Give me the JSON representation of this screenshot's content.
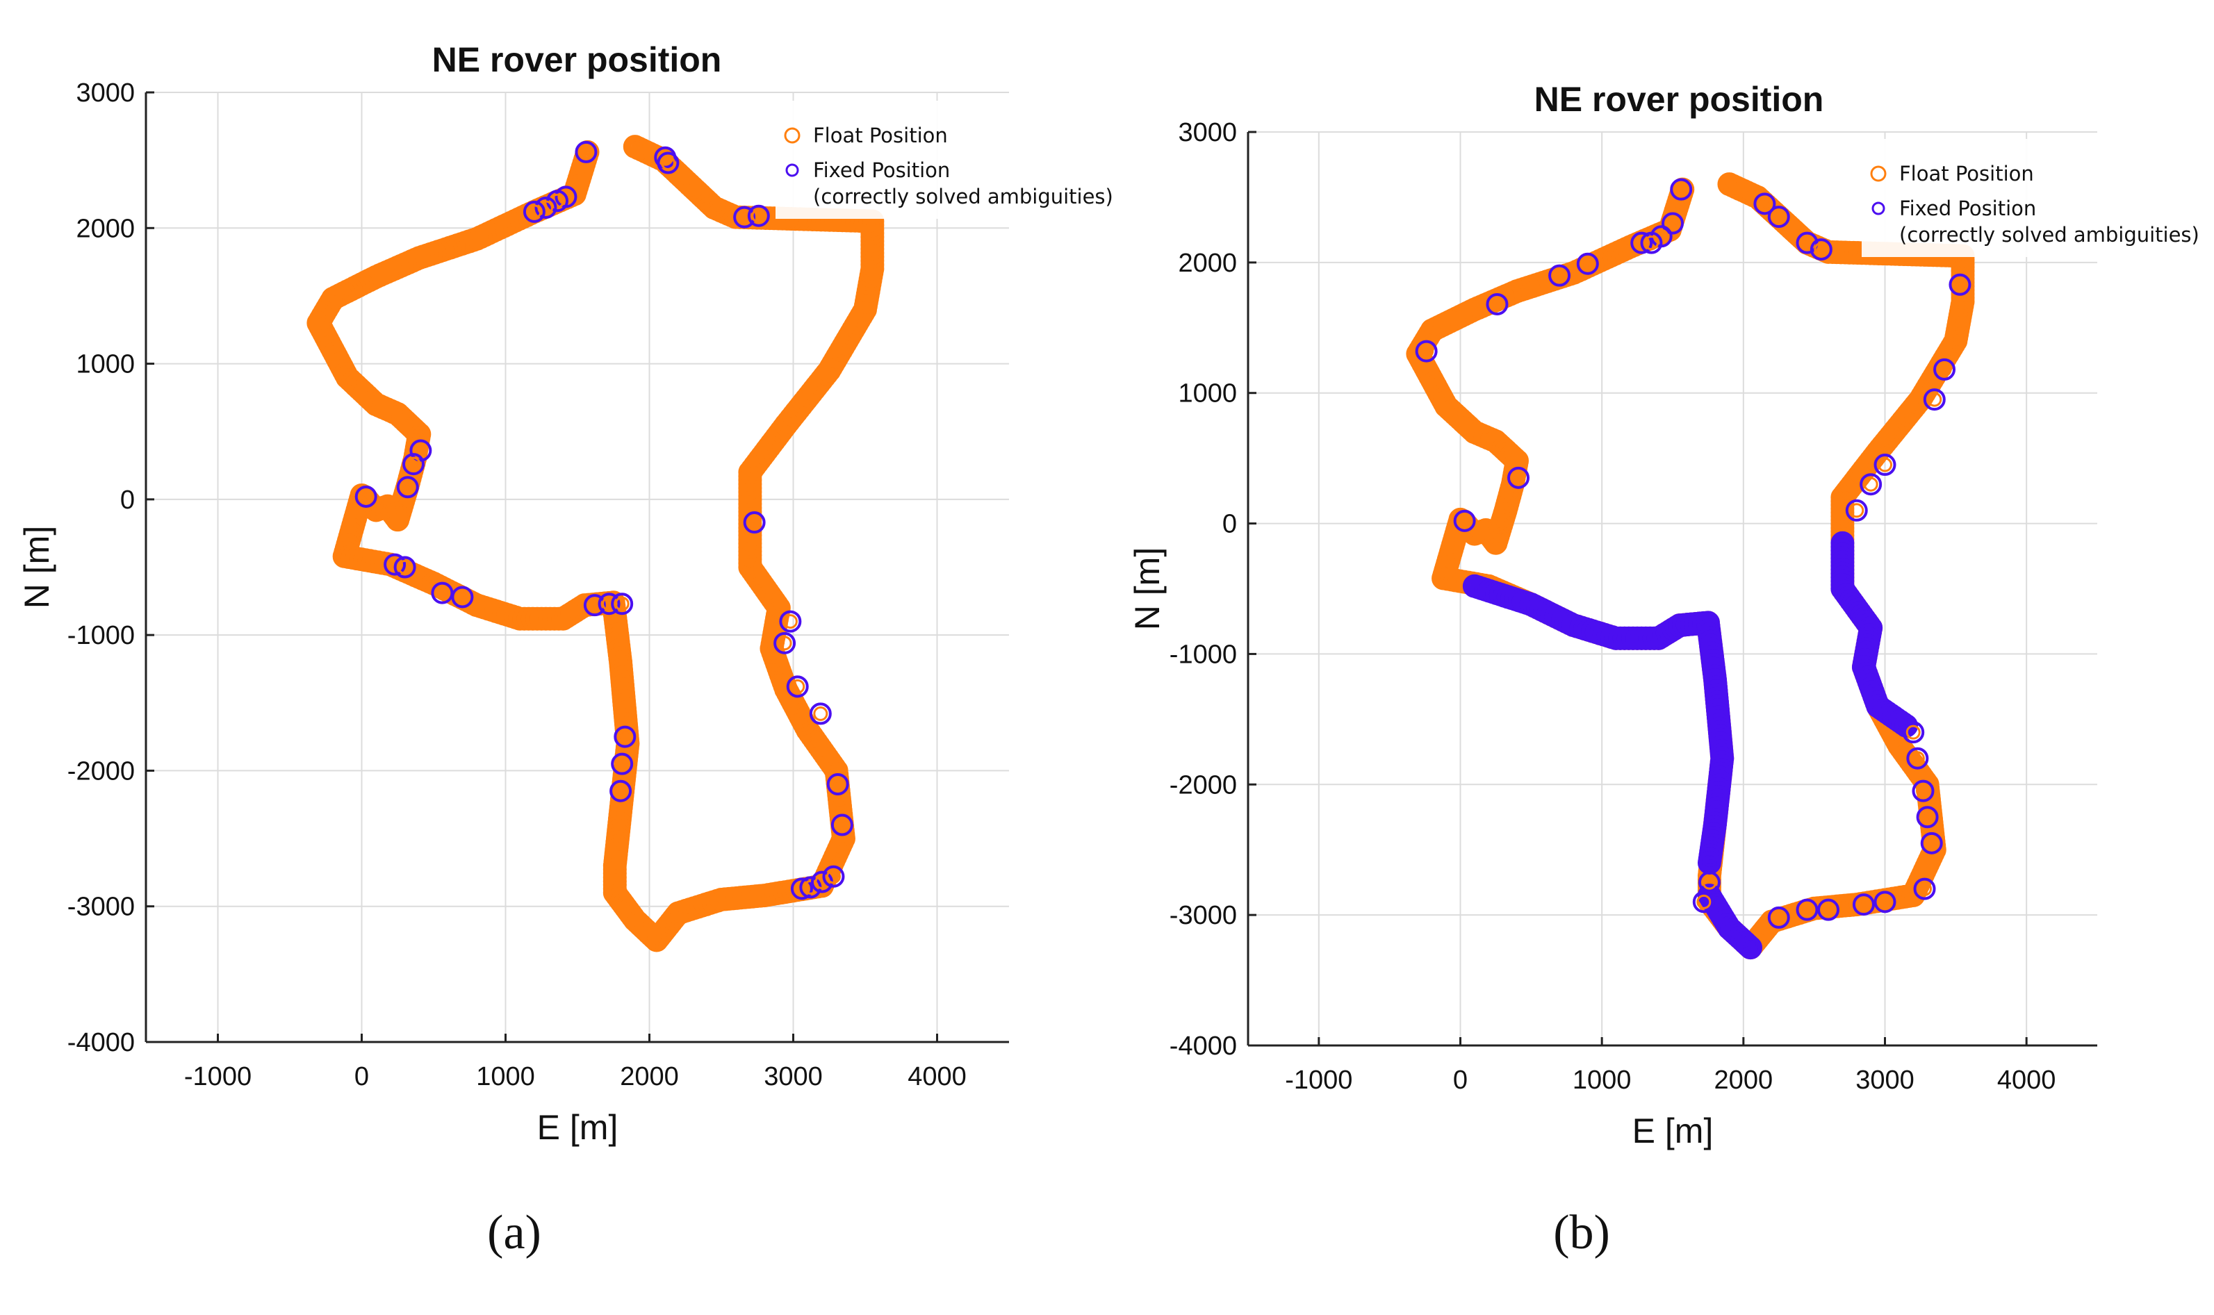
{
  "colors": {
    "float": "#ff7f0e",
    "fixed": "#4b0ff0",
    "grid": "#dcdcdc",
    "axis": "#222222",
    "text": "#111111"
  },
  "chart_data": [
    {
      "type": "scatter",
      "title": "NE rover position",
      "xlabel": "E [m]",
      "ylabel": "N [m]",
      "xlim": [
        -1500,
        4500
      ],
      "ylim": [
        -4000,
        3000
      ],
      "xticks": [
        -1000,
        0,
        1000,
        2000,
        3000,
        4000
      ],
      "yticks": [
        -4000,
        -3000,
        -2000,
        -1000,
        0,
        1000,
        2000,
        3000
      ],
      "grid": true,
      "legend_position": "top-right",
      "legend": [
        "Float Position",
        "Fixed Position",
        "(correctly solved ambiguities)"
      ],
      "caption": "(a)",
      "track": [
        [
          1570,
          2560
        ],
        [
          1480,
          2250
        ],
        [
          1200,
          2120
        ],
        [
          800,
          1920
        ],
        [
          400,
          1780
        ],
        [
          100,
          1640
        ],
        [
          -200,
          1480
        ],
        [
          -300,
          1300
        ],
        [
          -200,
          1100
        ],
        [
          -100,
          900
        ],
        [
          100,
          700
        ],
        [
          250,
          630
        ],
        [
          400,
          480
        ],
        [
          370,
          300
        ],
        [
          320,
          100
        ],
        [
          250,
          -150
        ],
        [
          180,
          -50
        ],
        [
          100,
          -80
        ],
        [
          20,
          20
        ],
        [
          0,
          30
        ],
        [
          -120,
          -420
        ],
        [
          200,
          -480
        ],
        [
          500,
          -620
        ],
        [
          800,
          -780
        ],
        [
          1100,
          -880
        ],
        [
          1400,
          -880
        ],
        [
          1550,
          -780
        ],
        [
          1750,
          -760
        ],
        [
          1800,
          -1200
        ],
        [
          1850,
          -1800
        ],
        [
          1800,
          -2300
        ],
        [
          1760,
          -2700
        ],
        [
          1760,
          -2900
        ],
        [
          1900,
          -3100
        ],
        [
          2050,
          -3250
        ],
        [
          2200,
          -3050
        ],
        [
          2500,
          -2950
        ],
        [
          2800,
          -2920
        ],
        [
          3200,
          -2850
        ],
        [
          3350,
          -2500
        ],
        [
          3300,
          -2000
        ],
        [
          3100,
          -1700
        ],
        [
          2950,
          -1400
        ],
        [
          2850,
          -1100
        ],
        [
          2900,
          -800
        ],
        [
          2700,
          -500
        ],
        [
          2700,
          -150
        ],
        [
          2700,
          200
        ],
        [
          2950,
          550
        ],
        [
          3250,
          950
        ],
        [
          3500,
          1400
        ],
        [
          3550,
          1700
        ],
        [
          3550,
          2050
        ],
        [
          2600,
          2080
        ],
        [
          2450,
          2150
        ],
        [
          2300,
          2300
        ],
        [
          2100,
          2500
        ],
        [
          1900,
          2600
        ]
      ],
      "fixed_segments": [],
      "fixed_points": [
        [
          1560,
          2560
        ],
        [
          1420,
          2230
        ],
        [
          1360,
          2200
        ],
        [
          1280,
          2150
        ],
        [
          1200,
          2120
        ],
        [
          2110,
          2520
        ],
        [
          2130,
          2480
        ],
        [
          2660,
          2080
        ],
        [
          2760,
          2090
        ],
        [
          410,
          360
        ],
        [
          360,
          260
        ],
        [
          320,
          90
        ],
        [
          30,
          20
        ],
        [
          230,
          -480
        ],
        [
          300,
          -500
        ],
        [
          560,
          -690
        ],
        [
          700,
          -720
        ],
        [
          1620,
          -780
        ],
        [
          1720,
          -770
        ],
        [
          1810,
          -770
        ],
        [
          1830,
          -1750
        ],
        [
          1810,
          -1950
        ],
        [
          1800,
          -2150
        ],
        [
          3060,
          -2870
        ],
        [
          3120,
          -2860
        ],
        [
          3200,
          -2820
        ],
        [
          3280,
          -2780
        ],
        [
          3340,
          -2400
        ],
        [
          3310,
          -2100
        ],
        [
          3190,
          -1580
        ],
        [
          3030,
          -1380
        ],
        [
          2940,
          -1060
        ],
        [
          2980,
          -900
        ],
        [
          2730,
          -170
        ]
      ]
    },
    {
      "type": "scatter",
      "title": "NE rover position",
      "xlabel": "E [m]",
      "ylabel": "N [m]",
      "xlim": [
        -1500,
        4500
      ],
      "ylim": [
        -4000,
        3000
      ],
      "xticks": [
        -1000,
        0,
        1000,
        2000,
        3000,
        4000
      ],
      "yticks": [
        -4000,
        -3000,
        -2000,
        -1000,
        0,
        1000,
        2000,
        3000
      ],
      "grid": true,
      "legend_position": "top-right",
      "legend": [
        "Float Position",
        "Fixed Position",
        "(correctly solved ambiguities)"
      ],
      "caption": "(b)",
      "track": [
        [
          1570,
          2560
        ],
        [
          1480,
          2250
        ],
        [
          1200,
          2120
        ],
        [
          800,
          1920
        ],
        [
          400,
          1780
        ],
        [
          100,
          1640
        ],
        [
          -200,
          1480
        ],
        [
          -300,
          1300
        ],
        [
          -200,
          1100
        ],
        [
          -100,
          900
        ],
        [
          100,
          700
        ],
        [
          250,
          630
        ],
        [
          400,
          480
        ],
        [
          370,
          300
        ],
        [
          320,
          100
        ],
        [
          250,
          -150
        ],
        [
          180,
          -50
        ],
        [
          100,
          -80
        ],
        [
          20,
          20
        ],
        [
          0,
          30
        ],
        [
          -120,
          -420
        ],
        [
          200,
          -480
        ],
        [
          500,
          -620
        ],
        [
          800,
          -780
        ],
        [
          1100,
          -880
        ],
        [
          1400,
          -880
        ],
        [
          1550,
          -780
        ],
        [
          1750,
          -760
        ],
        [
          1800,
          -1200
        ],
        [
          1850,
          -1800
        ],
        [
          1800,
          -2300
        ],
        [
          1760,
          -2700
        ],
        [
          1760,
          -2900
        ],
        [
          1900,
          -3100
        ],
        [
          2050,
          -3250
        ],
        [
          2200,
          -3050
        ],
        [
          2500,
          -2950
        ],
        [
          2800,
          -2920
        ],
        [
          3200,
          -2850
        ],
        [
          3350,
          -2500
        ],
        [
          3300,
          -2000
        ],
        [
          3100,
          -1700
        ],
        [
          2950,
          -1400
        ],
        [
          2850,
          -1100
        ],
        [
          2900,
          -800
        ],
        [
          2700,
          -500
        ],
        [
          2700,
          -150
        ],
        [
          2700,
          200
        ],
        [
          2950,
          550
        ],
        [
          3250,
          950
        ],
        [
          3500,
          1400
        ],
        [
          3550,
          1700
        ],
        [
          3550,
          2050
        ],
        [
          2600,
          2080
        ],
        [
          2450,
          2150
        ],
        [
          2300,
          2300
        ],
        [
          2100,
          2500
        ],
        [
          1900,
          2600
        ]
      ],
      "fixed_segments": [
        [
          [
            100,
            -480
          ],
          [
            500,
            -620
          ],
          [
            800,
            -780
          ],
          [
            1100,
            -880
          ],
          [
            1400,
            -880
          ],
          [
            1550,
            -780
          ],
          [
            1750,
            -760
          ],
          [
            1800,
            -1200
          ],
          [
            1850,
            -1800
          ],
          [
            1800,
            -2300
          ],
          [
            1760,
            -2600
          ]
        ],
        [
          [
            1760,
            -2850
          ],
          [
            1900,
            -3100
          ],
          [
            2050,
            -3250
          ]
        ],
        [
          [
            2700,
            -150
          ],
          [
            2700,
            -500
          ],
          [
            2900,
            -800
          ],
          [
            2850,
            -1100
          ],
          [
            2950,
            -1400
          ],
          [
            3150,
            -1550
          ]
        ]
      ],
      "fixed_points": [
        [
          1560,
          2560
        ],
        [
          1500,
          2300
        ],
        [
          1420,
          2200
        ],
        [
          1280,
          2150
        ],
        [
          900,
          1990
        ],
        [
          700,
          1900
        ],
        [
          260,
          1680
        ],
        [
          -240,
          1320
        ],
        [
          410,
          350
        ],
        [
          30,
          20
        ],
        [
          1350,
          2150
        ],
        [
          2150,
          2450
        ],
        [
          2250,
          2350
        ],
        [
          2450,
          2150
        ],
        [
          2550,
          2100
        ],
        [
          3530,
          1830
        ],
        [
          3420,
          1180
        ],
        [
          3350,
          950
        ],
        [
          3000,
          450
        ],
        [
          2900,
          300
        ],
        [
          2800,
          100
        ],
        [
          3200,
          -1600
        ],
        [
          3230,
          -1800
        ],
        [
          3270,
          -2050
        ],
        [
          3300,
          -2250
        ],
        [
          3330,
          -2450
        ],
        [
          3280,
          -2800
        ],
        [
          3000,
          -2900
        ],
        [
          2850,
          -2920
        ],
        [
          2600,
          -2960
        ],
        [
          2450,
          -2960
        ],
        [
          2250,
          -3020
        ],
        [
          1720,
          -2900
        ],
        [
          1760,
          -2750
        ]
      ]
    }
  ]
}
